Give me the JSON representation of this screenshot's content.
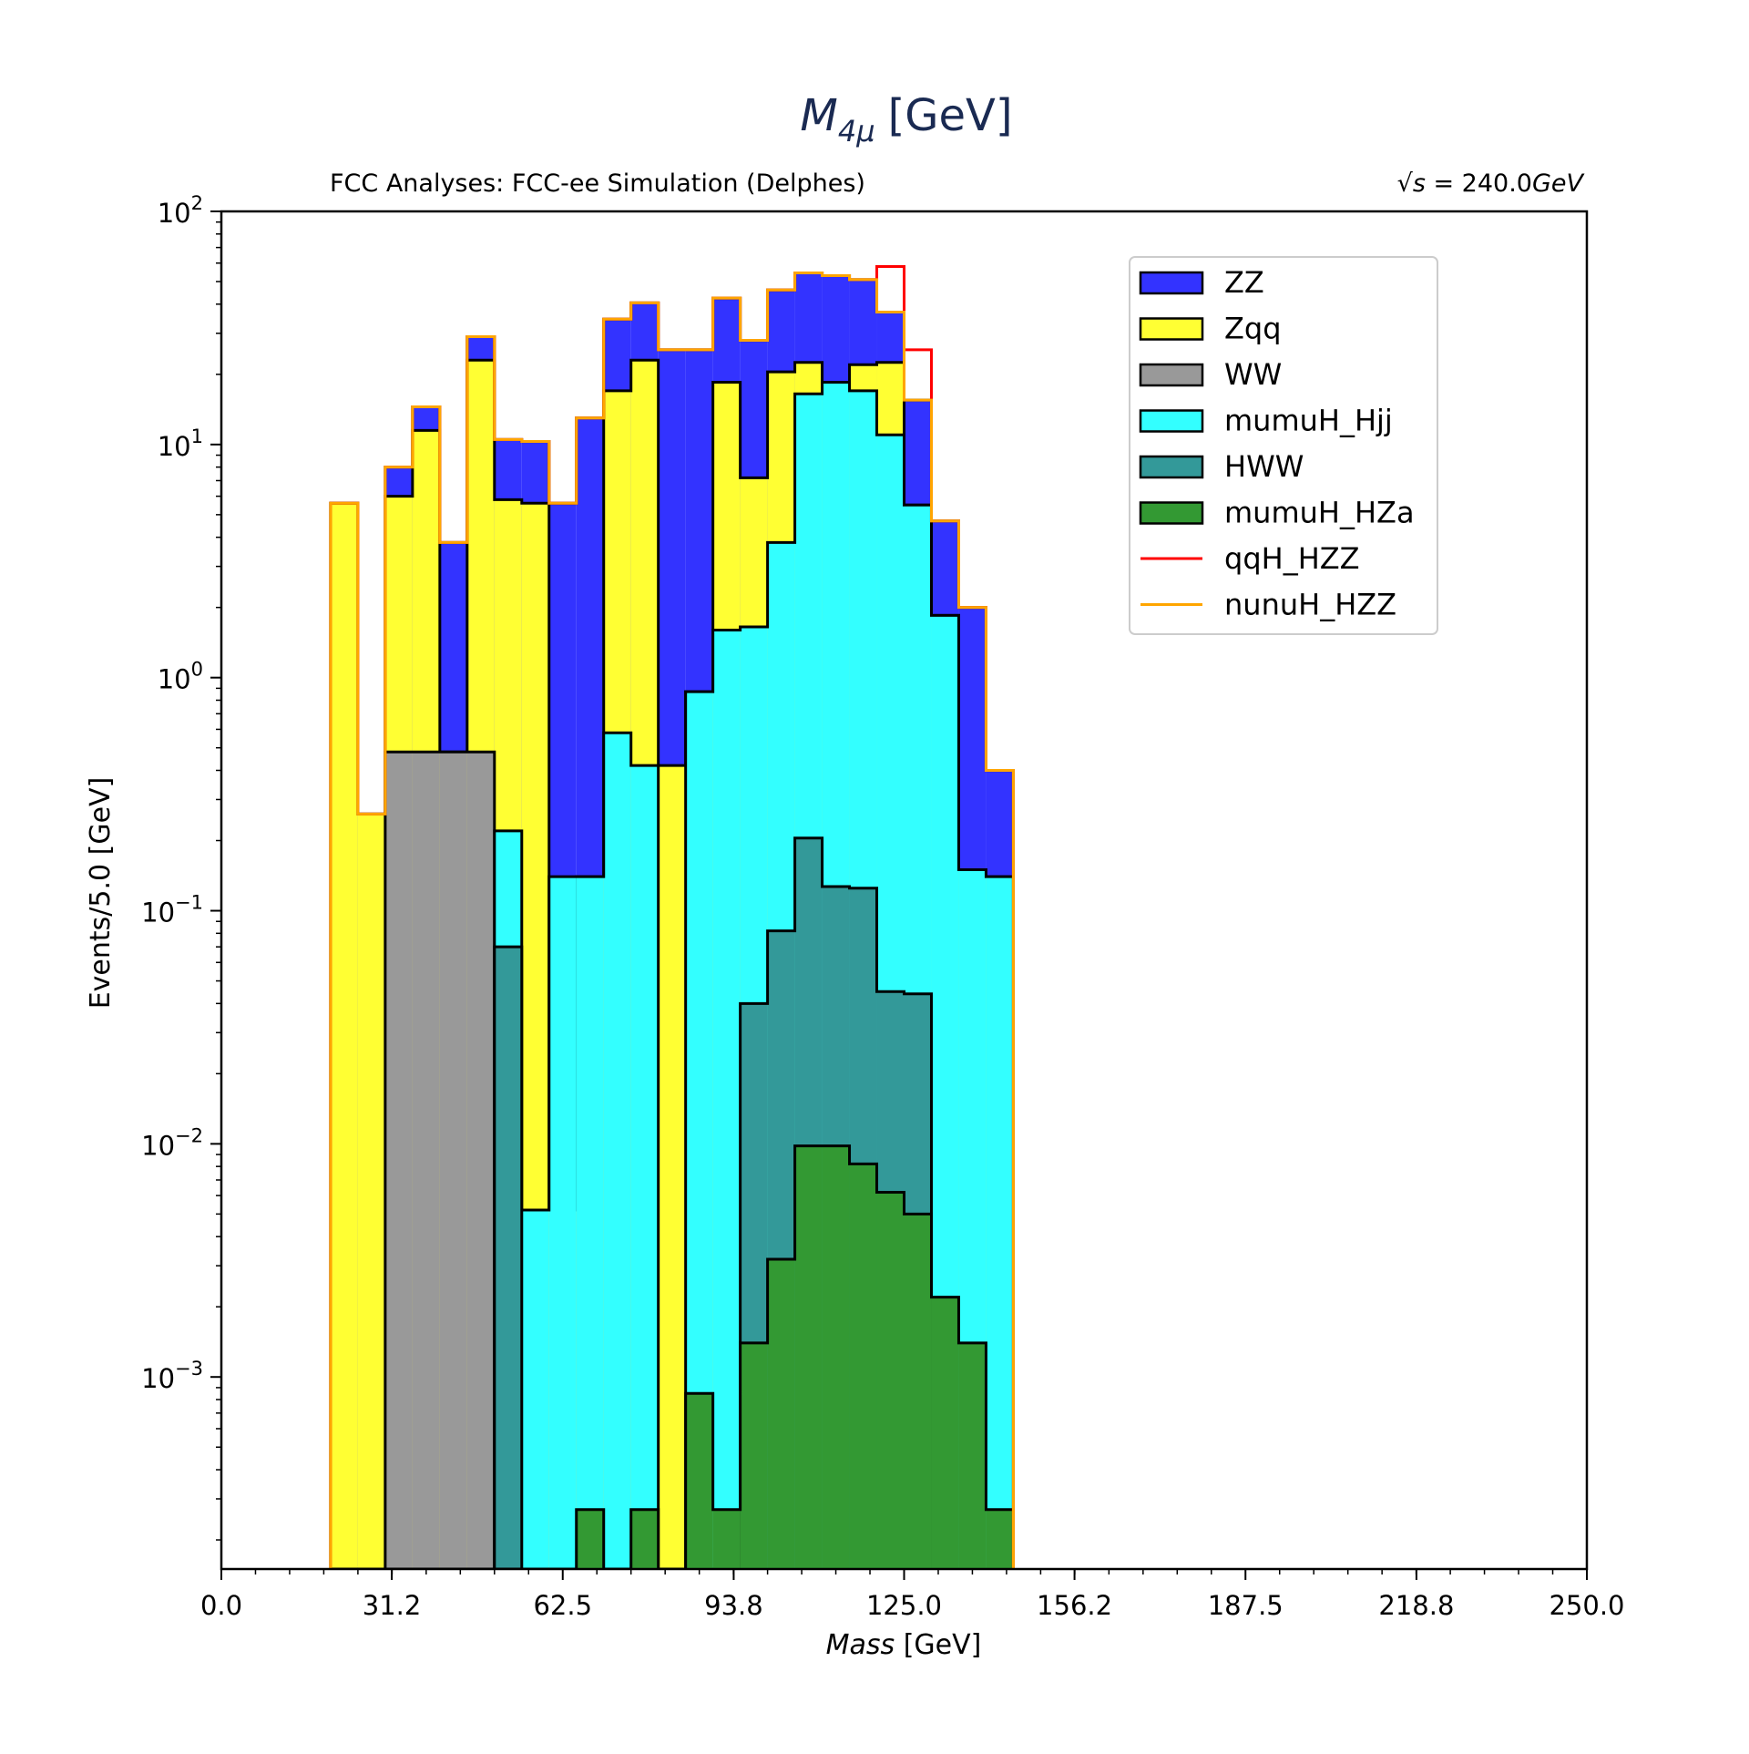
{
  "chart_data": {
    "type": "bar",
    "title": "M_{4μ} [GeV]",
    "title_parts": {
      "symbol": "M",
      "subscript": "4μ",
      "unit": "[GeV]"
    },
    "subtitle_left": "FCC Analyses: FCC-ee Simulation (Delphes)",
    "subtitle_right": "√s = 240.0GeV",
    "subtitle_right_parts": {
      "root": "√",
      "var": "s",
      "eq": " = 240.0",
      "unit": "GeV"
    },
    "xlabel": "Mass [GeV]",
    "xlabel_parts": {
      "var": "Mass",
      "unit": " [GeV]"
    },
    "ylabel": "Events/5.0 [GeV]",
    "xlim": [
      0,
      250
    ],
    "ylim": [
      0.00015,
      100
    ],
    "yscale": "log",
    "bin_width": 5,
    "xticks": [
      0,
      31.2,
      62.5,
      93.8,
      125,
      156.2,
      187.5,
      218.8,
      250
    ],
    "xtick_labels": [
      "0.0",
      "31.2",
      "62.5",
      "93.8",
      "125.0",
      "156.2",
      "187.5",
      "218.8",
      "250.0"
    ],
    "yticks": [
      0.001,
      0.01,
      0.1,
      1,
      10,
      100
    ],
    "ytick_labels": [
      {
        "base": "10",
        "exp": "−3"
      },
      {
        "base": "10",
        "exp": "−2"
      },
      {
        "base": "10",
        "exp": "−1"
      },
      {
        "base": "10",
        "exp": "0"
      },
      {
        "base": "10",
        "exp": "1"
      },
      {
        "base": "10",
        "exp": "2"
      }
    ],
    "legend_position": "upper-right",
    "bins": [
      20,
      25,
      30,
      35,
      40,
      45,
      50,
      55,
      60,
      65,
      70,
      75,
      80,
      85,
      90,
      95,
      100,
      105,
      110,
      115,
      120,
      125,
      130,
      135,
      140
    ],
    "stacked_series": [
      {
        "name": "ZZ",
        "color": "#3333ff",
        "cumulative": [
          5.6,
          0.26,
          8.0,
          14.5,
          3.8,
          29,
          10.5,
          10.3,
          5.6,
          13.0,
          34.5,
          40.5,
          25.5,
          25.5,
          42.5,
          28.0,
          46.0,
          54.5,
          53.0,
          51.0,
          37.0,
          15.5,
          4.7,
          2.0,
          0.4
        ]
      },
      {
        "name": "Zqq",
        "color": "#ffff33",
        "cumulative": [
          5.6,
          0.26,
          6.0,
          11.5,
          0.48,
          23,
          5.8,
          5.6,
          0.0052,
          0.14,
          17.0,
          23.0,
          0.42,
          0.87,
          18.5,
          7.2,
          20.5,
          22.5,
          18.5,
          22.0,
          22.5,
          5.5,
          1.85,
          0.15,
          0.14
        ]
      },
      {
        "name": "WW",
        "color": "#999999",
        "cumulative": [
          0,
          0,
          0.48,
          0.48,
          0.48,
          0.48,
          0,
          0,
          0,
          0,
          0,
          0,
          0,
          0,
          0,
          0,
          0,
          0,
          0,
          0,
          0,
          0,
          0,
          0,
          0
        ]
      },
      {
        "name": "mumuH_Hjj",
        "color": "#33ffff",
        "cumulative": [
          0,
          0,
          0,
          0,
          0,
          0,
          0.22,
          0.0052,
          0.14,
          0.14,
          0.58,
          0.42,
          0,
          0.87,
          1.6,
          1.65,
          3.8,
          16.5,
          18.5,
          17.0,
          11.0,
          5.5,
          1.85,
          0.15,
          0.14
        ]
      },
      {
        "name": "HWW",
        "color": "#339999",
        "cumulative": [
          0,
          0,
          0,
          0,
          0,
          0,
          0.07,
          0,
          0,
          0,
          0,
          0,
          0,
          0,
          0,
          0.04,
          0.082,
          0.205,
          0.127,
          0.125,
          0.045,
          0.044,
          0,
          0,
          0
        ]
      },
      {
        "name": "mumuH_HZa",
        "color": "#339933",
        "cumulative": [
          0,
          0,
          0,
          0,
          0,
          0,
          0,
          0,
          0,
          0.00027,
          0,
          0.00027,
          0,
          0.00085,
          0.00027,
          0.0014,
          0.0032,
          0.0098,
          0.0098,
          0.0082,
          0.0062,
          0.005,
          0.0022,
          0.0014,
          0.00027
        ]
      }
    ],
    "line_series": [
      {
        "name": "qqH_HZZ",
        "color": "#ff0000",
        "values": [
          5.6,
          0.26,
          8.0,
          14.5,
          3.8,
          29,
          10.5,
          10.3,
          5.6,
          13.0,
          34.5,
          40.5,
          25.5,
          25.5,
          42.5,
          28.0,
          46.0,
          54.5,
          53.0,
          51.0,
          58.0,
          25.5,
          4.7,
          2.0,
          0.4
        ]
      },
      {
        "name": "nunuH_HZZ",
        "color": "#ffa500",
        "values": [
          5.6,
          0.26,
          8.0,
          14.5,
          3.8,
          29,
          10.5,
          10.3,
          5.6,
          13.0,
          34.5,
          40.5,
          25.5,
          25.5,
          42.5,
          28.0,
          46.0,
          54.5,
          53.0,
          51.0,
          37.0,
          15.5,
          4.7,
          2.0,
          0.4
        ]
      }
    ]
  }
}
